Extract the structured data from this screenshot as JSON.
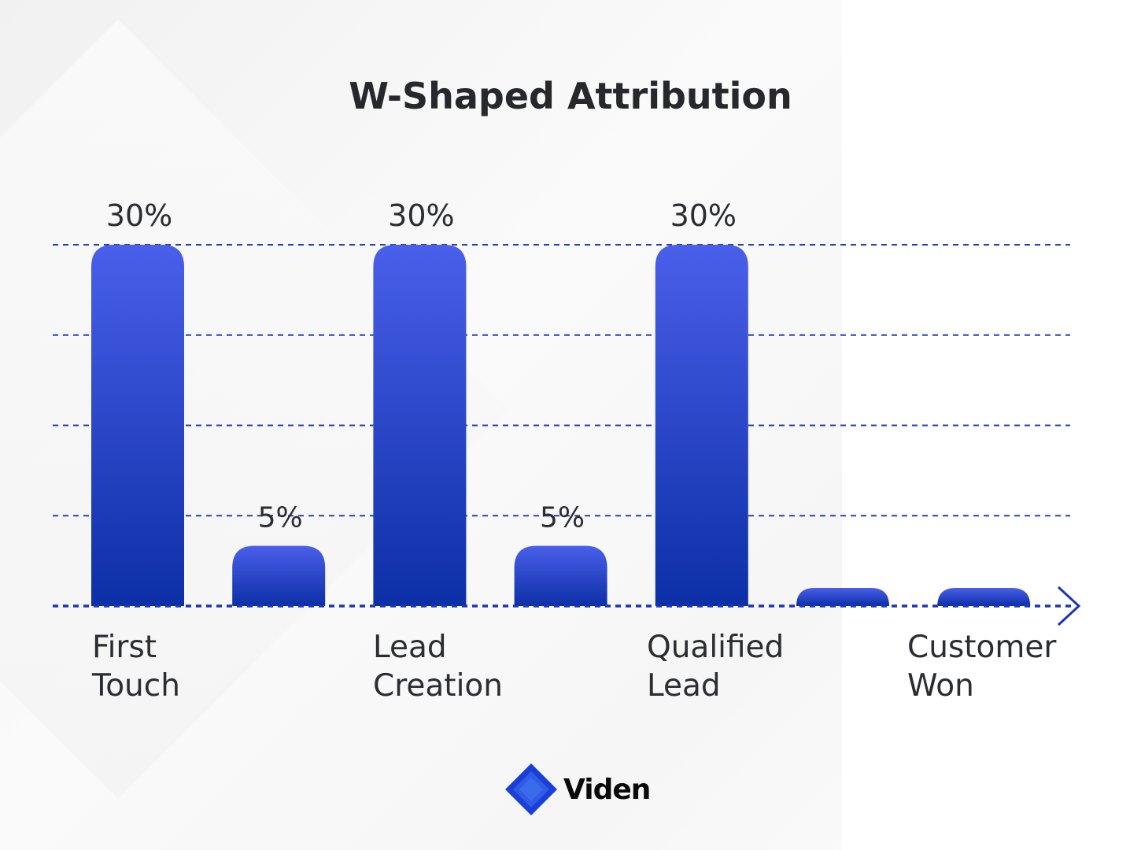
{
  "chart_data": {
    "type": "bar",
    "title": "W-Shaped Attribution",
    "categories": [
      "First\nTouch",
      "",
      "Lead\nCreation",
      "",
      "Qualified\nLead",
      "",
      "Customer\nWon"
    ],
    "values": [
      30,
      5,
      30,
      5,
      30,
      1.5,
      1.5
    ],
    "data_labels": [
      "30%",
      "5%",
      "30%",
      "5%",
      "30%",
      null,
      null
    ],
    "xlabel": "",
    "ylabel": "",
    "ylim": [
      0,
      30
    ],
    "grid": true,
    "colors": {
      "bar_top": "#4a5fea",
      "bar_bottom": "#0c2fa6",
      "grid": "#2440c0",
      "title": "#26282c"
    }
  },
  "logo": {
    "text": "Viden",
    "color": "#2a5ae0"
  }
}
